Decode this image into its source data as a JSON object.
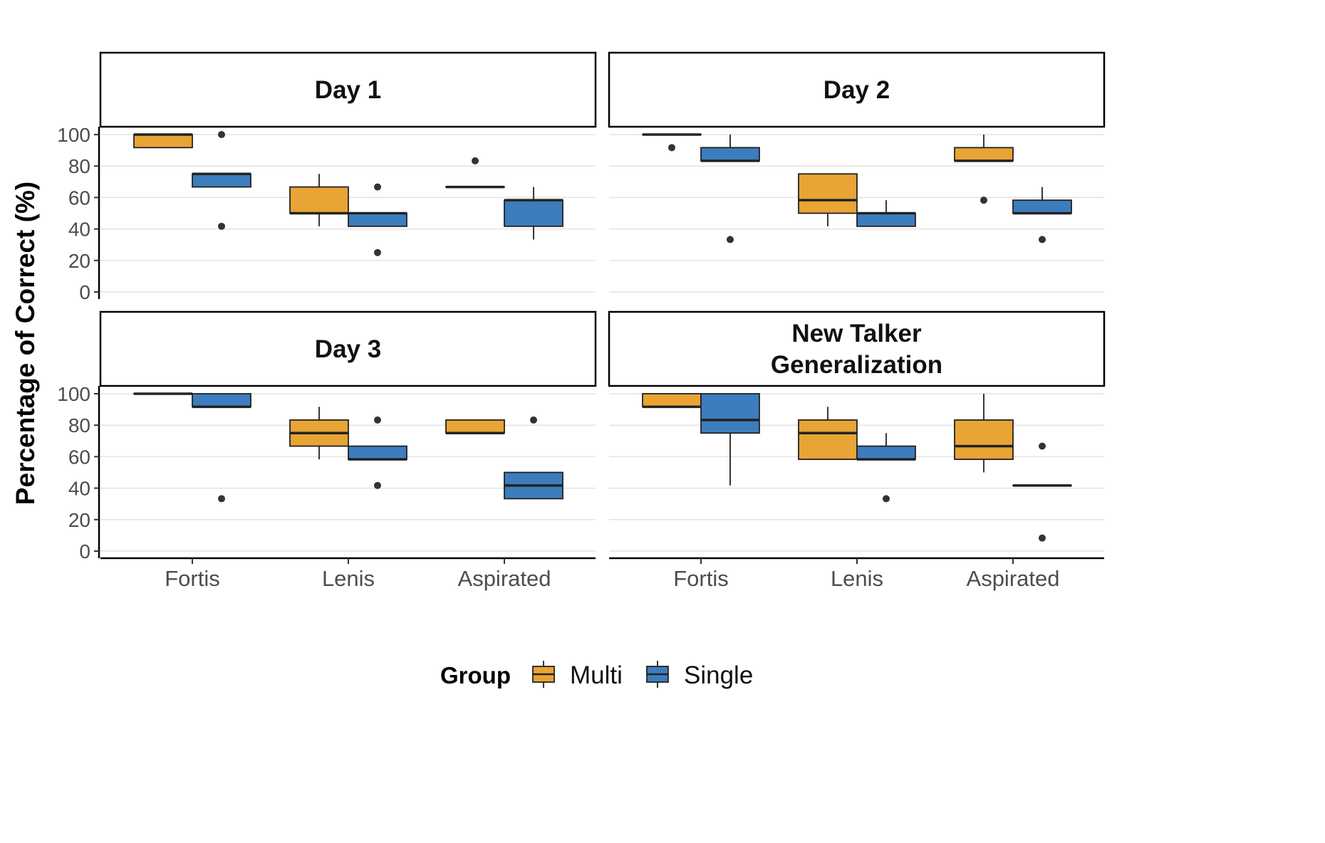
{
  "chart_data": {
    "type": "boxplot",
    "ylabel": "Percentage of Correct (%)",
    "xlabel": "",
    "ylim": [
      0,
      100
    ],
    "y_ticks": [
      0,
      20,
      40,
      60,
      80,
      100
    ],
    "categories": [
      "Fortis",
      "Lenis",
      "Aspirated"
    ],
    "grid": "horizontal major gridlines",
    "legend": {
      "title": "Group",
      "position": "bottom",
      "entries": [
        {
          "name": "Multi",
          "color": "#E8A434"
        },
        {
          "name": "Single",
          "color": "#3C7DBD"
        }
      ]
    },
    "panels": [
      {
        "title": [
          "Day 1"
        ],
        "groups": [
          {
            "category": "Fortis",
            "series": "Multi",
            "q1": 91.7,
            "median": 100,
            "q3": 100,
            "whisker_low": 91.7,
            "whisker_high": 100,
            "outliers": []
          },
          {
            "category": "Fortis",
            "series": "Single",
            "q1": 66.7,
            "median": 75,
            "q3": 75,
            "whisker_low": 66.7,
            "whisker_high": 75,
            "outliers": [
              100,
              41.7
            ]
          },
          {
            "category": "Lenis",
            "series": "Multi",
            "q1": 50,
            "median": 50,
            "q3": 66.7,
            "whisker_low": 41.7,
            "whisker_high": 75,
            "outliers": []
          },
          {
            "category": "Lenis",
            "series": "Single",
            "q1": 41.7,
            "median": 50,
            "q3": 50,
            "whisker_low": 41.7,
            "whisker_high": 50,
            "outliers": [
              66.7,
              25
            ]
          },
          {
            "category": "Aspirated",
            "series": "Multi",
            "q1": 66.7,
            "median": 66.7,
            "q3": 66.7,
            "whisker_low": 66.7,
            "whisker_high": 66.7,
            "outliers": [
              83.3
            ]
          },
          {
            "category": "Aspirated",
            "series": "Single",
            "q1": 41.7,
            "median": 58.3,
            "q3": 58.3,
            "whisker_low": 33.3,
            "whisker_high": 66.7,
            "outliers": []
          }
        ]
      },
      {
        "title": [
          "Day 2"
        ],
        "groups": [
          {
            "category": "Fortis",
            "series": "Multi",
            "q1": 100,
            "median": 100,
            "q3": 100,
            "whisker_low": 100,
            "whisker_high": 100,
            "outliers": [
              91.7
            ]
          },
          {
            "category": "Fortis",
            "series": "Single",
            "q1": 83.3,
            "median": 83.3,
            "q3": 91.7,
            "whisker_low": 83.3,
            "whisker_high": 100,
            "outliers": [
              33.3
            ]
          },
          {
            "category": "Lenis",
            "series": "Multi",
            "q1": 50,
            "median": 58.3,
            "q3": 75,
            "whisker_low": 41.7,
            "whisker_high": 75,
            "outliers": []
          },
          {
            "category": "Lenis",
            "series": "Single",
            "q1": 41.7,
            "median": 50,
            "q3": 50,
            "whisker_low": 41.7,
            "whisker_high": 58.3,
            "outliers": []
          },
          {
            "category": "Aspirated",
            "series": "Multi",
            "q1": 83.3,
            "median": 83.3,
            "q3": 91.7,
            "whisker_low": 83.3,
            "whisker_high": 100,
            "outliers": [
              58.3
            ]
          },
          {
            "category": "Aspirated",
            "series": "Single",
            "q1": 50,
            "median": 50,
            "q3": 58.3,
            "whisker_low": 50,
            "whisker_high": 66.7,
            "outliers": [
              33.3
            ]
          }
        ]
      },
      {
        "title": [
          "Day 3"
        ],
        "groups": [
          {
            "category": "Fortis",
            "series": "Multi",
            "q1": 100,
            "median": 100,
            "q3": 100,
            "whisker_low": 100,
            "whisker_high": 100,
            "outliers": []
          },
          {
            "category": "Fortis",
            "series": "Single",
            "q1": 91.7,
            "median": 91.7,
            "q3": 100,
            "whisker_low": 91.7,
            "whisker_high": 100,
            "outliers": [
              33.3
            ]
          },
          {
            "category": "Lenis",
            "series": "Multi",
            "q1": 66.7,
            "median": 75,
            "q3": 83.3,
            "whisker_low": 58.3,
            "whisker_high": 91.7,
            "outliers": []
          },
          {
            "category": "Lenis",
            "series": "Single",
            "q1": 58.3,
            "median": 58.3,
            "q3": 66.7,
            "whisker_low": 58.3,
            "whisker_high": 66.7,
            "outliers": [
              83.3,
              41.7
            ]
          },
          {
            "category": "Aspirated",
            "series": "Multi",
            "q1": 75,
            "median": 75,
            "q3": 83.3,
            "whisker_low": 75,
            "whisker_high": 83.3,
            "outliers": []
          },
          {
            "category": "Aspirated",
            "series": "Single",
            "q1": 33.3,
            "median": 41.7,
            "q3": 50,
            "whisker_low": 33.3,
            "whisker_high": 50,
            "outliers": [
              83.3
            ]
          }
        ]
      },
      {
        "title": [
          "New Talker",
          "Generalization"
        ],
        "groups": [
          {
            "category": "Fortis",
            "series": "Multi",
            "q1": 91.7,
            "median": 91.7,
            "q3": 100,
            "whisker_low": 91.7,
            "whisker_high": 100,
            "outliers": []
          },
          {
            "category": "Fortis",
            "series": "Single",
            "q1": 75,
            "median": 83.3,
            "q3": 100,
            "whisker_low": 41.7,
            "whisker_high": 100,
            "outliers": []
          },
          {
            "category": "Lenis",
            "series": "Multi",
            "q1": 58.3,
            "median": 75,
            "q3": 83.3,
            "whisker_low": 58.3,
            "whisker_high": 91.7,
            "outliers": []
          },
          {
            "category": "Lenis",
            "series": "Single",
            "q1": 58.3,
            "median": 58.3,
            "q3": 66.7,
            "whisker_low": 58.3,
            "whisker_high": 75,
            "outliers": [
              33.3
            ]
          },
          {
            "category": "Aspirated",
            "series": "Multi",
            "q1": 58.3,
            "median": 66.7,
            "q3": 83.3,
            "whisker_low": 50,
            "whisker_high": 100,
            "outliers": []
          },
          {
            "category": "Aspirated",
            "series": "Single",
            "q1": 41.7,
            "median": 41.7,
            "q3": 41.7,
            "whisker_low": 41.7,
            "whisker_high": 41.7,
            "outliers": [
              66.7,
              8.3
            ]
          }
        ]
      }
    ]
  }
}
